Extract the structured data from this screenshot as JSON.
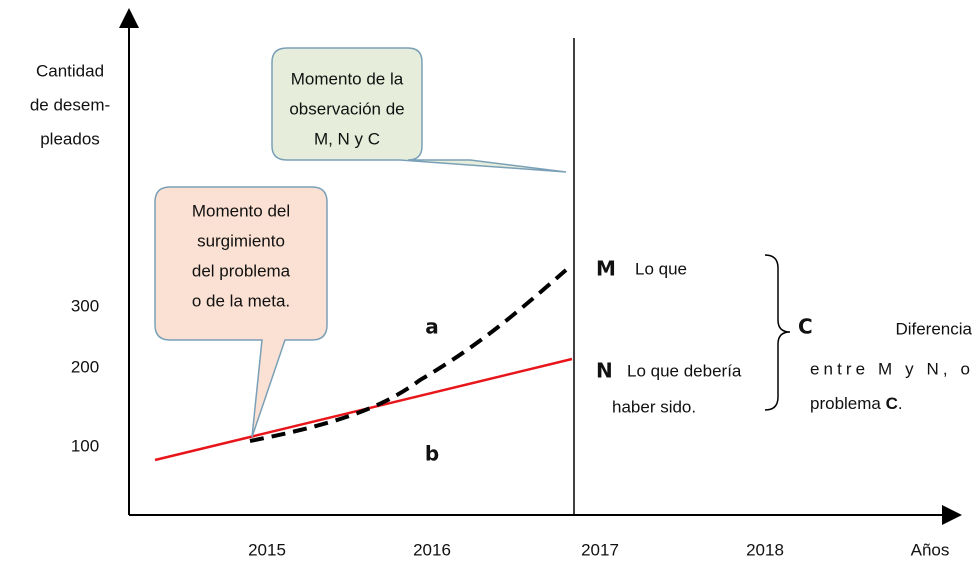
{
  "axis": {
    "y_label": [
      "Cantidad",
      "de desem-",
      "pleados"
    ],
    "y_ticks": [
      "300",
      "200",
      "100"
    ],
    "x_ticks": [
      "2015",
      "2016",
      "2017",
      "2018"
    ],
    "x_label": "Años"
  },
  "callouts": [
    {
      "lines": [
        "Momento de la",
        "observación de",
        "M, N y C"
      ]
    },
    {
      "lines": [
        "Momento del",
        "surgimiento",
        "del problema",
        "o de la meta."
      ]
    }
  ],
  "curves": {
    "a": "a",
    "b": "b"
  },
  "legend": {
    "m_letter": "M",
    "m_text": "Lo que",
    "n_letter": "N",
    "n_text": [
      "Lo que debería",
      "haber sido."
    ],
    "c_letter": "C",
    "c_text": [
      "Diferencia",
      "entre M y N, o",
      "problema"
    ],
    "c_end": "C",
    "c_period": "."
  }
}
